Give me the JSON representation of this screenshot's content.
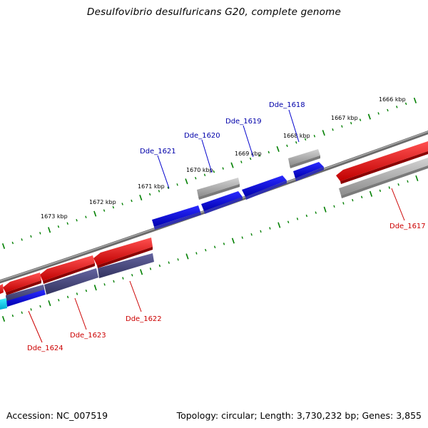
{
  "title": "Desulfovibrio desulfuricans G20, complete genome",
  "footer": {
    "accession_label": "Accession:",
    "accession": "NC_007519",
    "topology_label": "Topology:",
    "topology": "circular",
    "length_label": "Length:",
    "length": "3,730,232 bp",
    "genes_label": "Genes:",
    "genes": "3,855"
  },
  "colors": {
    "forward_strand": "#ff0000",
    "reverse_strand": "#0000ff",
    "other_feature": "#b4b4b4",
    "overlap_feature": "#464680",
    "cyan_feature": "#00e0ff",
    "backbone": "#808080",
    "scale_tick": "#008000",
    "forward_label": "#cc0000",
    "reverse_label": "#0000aa"
  },
  "scale_labels": [
    "1666 kbp",
    "1667 kbp",
    "1668 kbp",
    "1669 kbp",
    "1670 kbp",
    "1671 kbp",
    "1672 kbp",
    "1673 kbp"
  ],
  "gene_labels": {
    "reverse": [
      "Dde_1618",
      "Dde_1619",
      "Dde_1620",
      "Dde_1621"
    ],
    "forward": [
      "Dde_1617",
      "Dde_1622",
      "Dde_1623",
      "Dde_1624"
    ]
  }
}
